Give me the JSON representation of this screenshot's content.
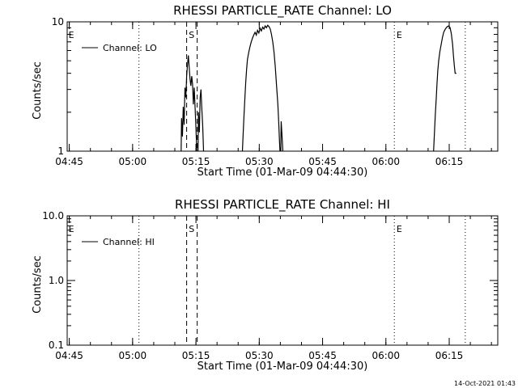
{
  "footer": {
    "timestamp": "14-Oct-2021 01:43"
  },
  "chart_data": [
    {
      "type": "line",
      "title": "RHESSI PARTICLE_RATE Channel: LO",
      "xlabel": "Start Time (01-Mar-09 04:44:30)",
      "ylabel": "Counts/sec",
      "x_unit": "minutes after 04:44:30",
      "xlim": [
        0,
        102
      ],
      "ylim": [
        1,
        10
      ],
      "yscale": "log",
      "x_ticks": [
        {
          "t": 0.5,
          "label": "04:45"
        },
        {
          "t": 15.5,
          "label": "05:00"
        },
        {
          "t": 30.5,
          "label": "05:15"
        },
        {
          "t": 45.5,
          "label": "05:30"
        },
        {
          "t": 60.5,
          "label": "05:45"
        },
        {
          "t": 75.5,
          "label": "06:00"
        },
        {
          "t": 90.5,
          "label": "06:15"
        }
      ],
      "y_ticks": [
        {
          "v": 1,
          "label": "1"
        },
        {
          "v": 10,
          "label": "10"
        }
      ],
      "legend": {
        "position": "top-left",
        "label": "Channel: LO"
      },
      "vlines": [
        {
          "t": 17.0,
          "style": "dotted"
        },
        {
          "t": 28.3,
          "style": "dashed"
        },
        {
          "t": 30.8,
          "style": "dashed"
        },
        {
          "t": 77.5,
          "style": "dotted"
        },
        {
          "t": 94.3,
          "style": "dotted"
        }
      ],
      "markers": [
        {
          "t": 0.3,
          "label": "E"
        },
        {
          "t": 28.8,
          "label": "S"
        },
        {
          "t": 78.0,
          "label": "E"
        }
      ],
      "series": [
        {
          "segments": [
            [
              [
                27.0,
                1
              ],
              [
                27.1,
                1.8
              ],
              [
                27.3,
                1.3
              ],
              [
                27.5,
                2.2
              ],
              [
                27.7,
                1.6
              ],
              [
                27.9,
                3.1
              ],
              [
                28.1,
                2.6
              ],
              [
                28.3,
                3.8
              ],
              [
                28.5,
                4.6
              ],
              [
                28.7,
                5.5
              ],
              [
                28.9,
                4.5
              ],
              [
                29.1,
                3.6
              ],
              [
                29.3,
                3.2
              ],
              [
                29.5,
                3.8
              ],
              [
                29.7,
                3.3
              ],
              [
                29.9,
                2.3
              ],
              [
                30.1,
                3.1
              ],
              [
                30.3,
                2.2
              ],
              [
                30.5,
                1.5
              ],
              [
                30.7,
                1
              ]
            ],
            [
              [
                31.0,
                1
              ],
              [
                31.1,
                2.0
              ],
              [
                31.3,
                1.4
              ],
              [
                31.5,
                2.6
              ],
              [
                31.7,
                3.0
              ],
              [
                31.9,
                2.1
              ],
              [
                32.1,
                1.6
              ],
              [
                32.3,
                1
              ]
            ],
            [
              [
                41.5,
                1
              ],
              [
                41.7,
                1.4
              ],
              [
                41.9,
                1.9
              ],
              [
                42.1,
                2.6
              ],
              [
                42.3,
                3.4
              ],
              [
                42.5,
                4.3
              ],
              [
                42.7,
                5.1
              ],
              [
                43.0,
                5.8
              ],
              [
                43.3,
                6.4
              ],
              [
                43.6,
                7.0
              ],
              [
                43.9,
                7.5
              ],
              [
                44.2,
                7.9
              ],
              [
                44.5,
                8.3
              ],
              [
                44.8,
                7.9
              ],
              [
                45.1,
                8.6
              ],
              [
                45.4,
                8.2
              ],
              [
                45.7,
                8.9
              ],
              [
                46.0,
                8.5
              ],
              [
                46.3,
                9.1
              ],
              [
                46.6,
                8.8
              ],
              [
                46.9,
                9.3
              ],
              [
                47.2,
                9.0
              ],
              [
                47.5,
                9.4
              ],
              [
                47.8,
                9.2
              ],
              [
                48.1,
                8.8
              ],
              [
                48.4,
                8.0
              ],
              [
                48.7,
                7.0
              ],
              [
                49.0,
                5.8
              ],
              [
                49.3,
                4.5
              ],
              [
                49.6,
                3.2
              ],
              [
                49.9,
                2.3
              ],
              [
                50.1,
                1.7
              ],
              [
                50.3,
                1.2
              ],
              [
                50.4,
                1
              ]
            ],
            [
              [
                50.6,
                1
              ],
              [
                50.7,
                1.7
              ],
              [
                50.9,
                1.3
              ],
              [
                51.1,
                1
              ]
            ],
            [
              [
                86.8,
                1
              ],
              [
                87.0,
                1.4
              ],
              [
                87.2,
                1.9
              ],
              [
                87.4,
                2.5
              ],
              [
                87.6,
                3.3
              ],
              [
                87.8,
                4.2
              ],
              [
                88.0,
                5.0
              ],
              [
                88.3,
                5.9
              ],
              [
                88.6,
                6.7
              ],
              [
                88.9,
                7.6
              ],
              [
                89.2,
                8.3
              ],
              [
                89.5,
                8.7
              ],
              [
                89.8,
                9.0
              ],
              [
                90.1,
                9.2
              ],
              [
                90.4,
                9.3
              ],
              [
                90.7,
                9.0
              ],
              [
                91.0,
                8.1
              ],
              [
                91.3,
                6.7
              ],
              [
                91.5,
                5.5
              ],
              [
                91.7,
                4.6
              ],
              [
                91.9,
                4.0
              ],
              [
                92.2,
                4.0
              ]
            ]
          ]
        }
      ]
    },
    {
      "type": "line",
      "title": "RHESSI PARTICLE_RATE Channel: HI",
      "xlabel": "Start Time (01-Mar-09 04:44:30)",
      "ylabel": "Counts/sec",
      "x_unit": "minutes after 04:44:30",
      "xlim": [
        0,
        102
      ],
      "ylim": [
        0.1,
        10
      ],
      "yscale": "log",
      "x_ticks": [
        {
          "t": 0.5,
          "label": "04:45"
        },
        {
          "t": 15.5,
          "label": "05:00"
        },
        {
          "t": 30.5,
          "label": "05:15"
        },
        {
          "t": 45.5,
          "label": "05:30"
        },
        {
          "t": 60.5,
          "label": "05:45"
        },
        {
          "t": 75.5,
          "label": "06:00"
        },
        {
          "t": 90.5,
          "label": "06:15"
        }
      ],
      "y_ticks": [
        {
          "v": 0.1,
          "label": "0.1"
        },
        {
          "v": 1,
          "label": "1.0"
        },
        {
          "v": 10,
          "label": "10.0"
        }
      ],
      "legend": {
        "position": "top-left",
        "label": "Channel: HI"
      },
      "vlines": [
        {
          "t": 17.0,
          "style": "dotted"
        },
        {
          "t": 28.3,
          "style": "dashed"
        },
        {
          "t": 30.8,
          "style": "dashed"
        },
        {
          "t": 77.5,
          "style": "dotted"
        },
        {
          "t": 94.3,
          "style": "dotted"
        }
      ],
      "markers": [
        {
          "t": 0.3,
          "label": "E"
        },
        {
          "t": 28.8,
          "label": "S"
        },
        {
          "t": 78.0,
          "label": "E"
        }
      ],
      "series": []
    }
  ]
}
